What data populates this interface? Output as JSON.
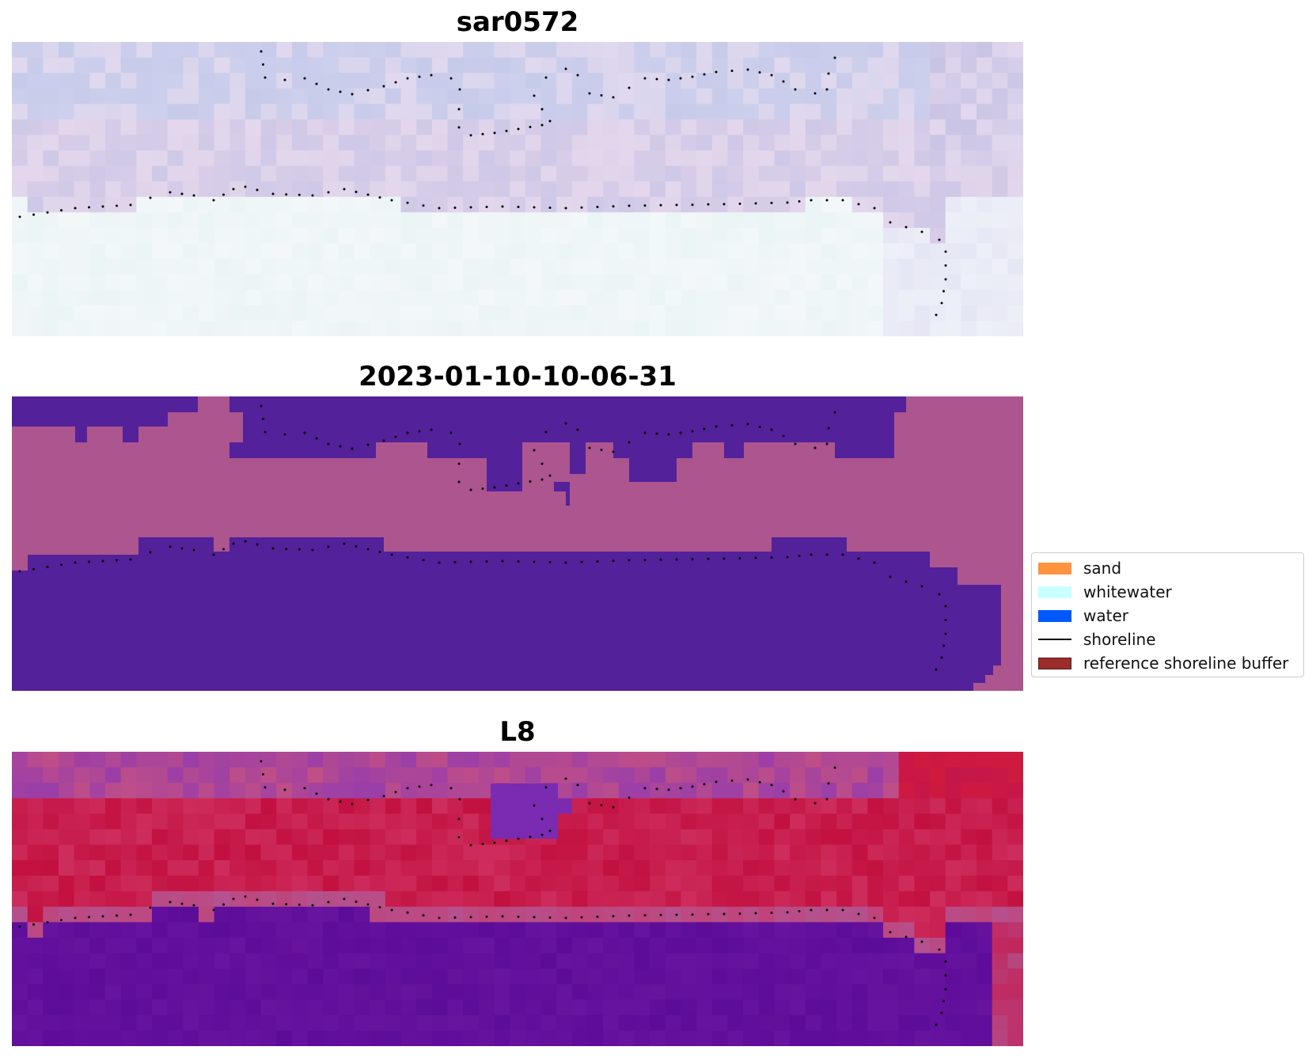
{
  "panels": [
    {
      "title": "sar0572",
      "style": "sar"
    },
    {
      "title": "2023-01-10-10-06-31",
      "style": "classified"
    },
    {
      "title": "L8",
      "style": "index"
    }
  ],
  "legend": {
    "items": [
      {
        "label": "sand",
        "kind": "patch",
        "color": "#ff9340"
      },
      {
        "label": "whitewater",
        "kind": "patch",
        "color": "#c9ffff"
      },
      {
        "label": "water",
        "kind": "patch",
        "color": "#0059ff"
      },
      {
        "label": "shoreline",
        "kind": "line",
        "color": "#000000"
      },
      {
        "label": "reference shoreline buffer",
        "kind": "patch",
        "color": "#9a2c2c"
      }
    ]
  },
  "colors": {
    "class_purple": "#53219a",
    "class_pink": "#ad558f",
    "index_red": "#c2103f",
    "index_purple": "#5d0b99",
    "sar_lavender": "#cfcde9",
    "sar_white": "#f3f7f9",
    "shoreline_dots": "#000000"
  }
}
